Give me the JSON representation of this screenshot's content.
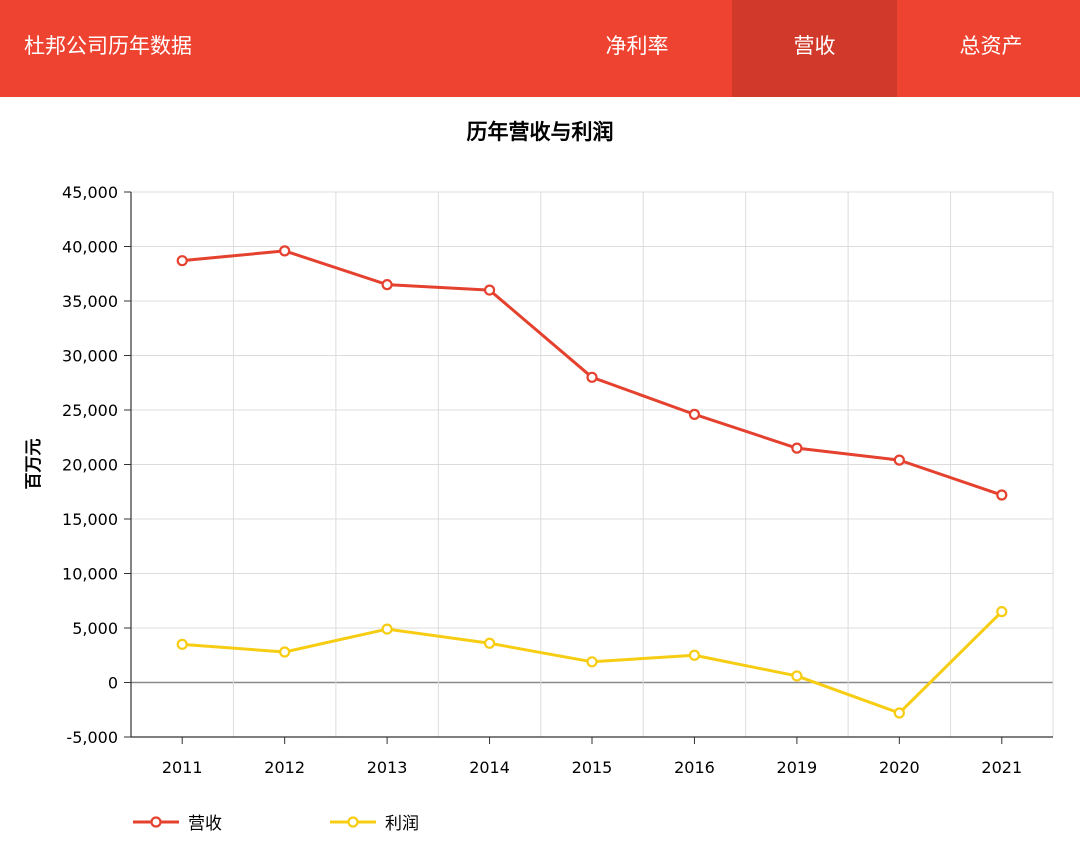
{
  "header": {
    "title": "杜邦公司历年数据",
    "tabs": [
      {
        "label": "净利率",
        "active": false
      },
      {
        "label": "营收",
        "active": true
      },
      {
        "label": "总资产",
        "active": false
      }
    ],
    "colors": {
      "bar": "#ee4330",
      "active_tab": "#d13a2a"
    }
  },
  "chart_data": {
    "type": "line",
    "title": "历年营收与利润",
    "ylabel": "百万元",
    "xlabel": "",
    "categories": [
      "2011",
      "2012",
      "2013",
      "2014",
      "2015",
      "2016",
      "2019",
      "2020",
      "2021"
    ],
    "ylim": [
      -5000,
      45000
    ],
    "yticks": [
      -5000,
      0,
      5000,
      10000,
      15000,
      20000,
      25000,
      30000,
      35000,
      40000,
      45000
    ],
    "ytick_labels": [
      "-5,000",
      "0",
      "5,000",
      "10,000",
      "15,000",
      "20,000",
      "25,000",
      "30,000",
      "35,000",
      "40,000",
      "45,000"
    ],
    "grid": true,
    "legend_position": "bottom-left",
    "series": [
      {
        "name": "营收",
        "color": "#e5412f",
        "values": [
          38700,
          39600,
          36500,
          36000,
          28000,
          24600,
          21500,
          20400,
          17200
        ]
      },
      {
        "name": "利润",
        "color": "#f7cd13",
        "values": [
          3500,
          2800,
          4900,
          3600,
          1900,
          2500,
          600,
          -2800,
          6500
        ]
      }
    ]
  }
}
